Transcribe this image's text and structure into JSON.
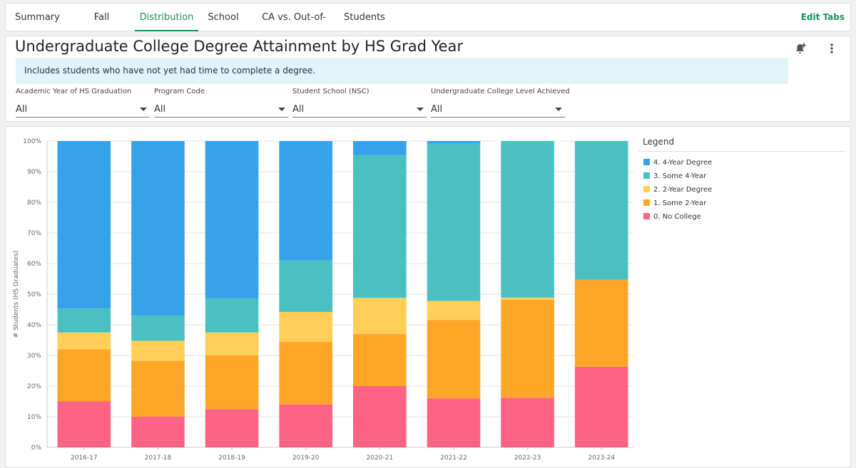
{
  "tabs": {
    "items": [
      {
        "label": "Summary"
      },
      {
        "label": "Fall Enrollment"
      },
      {
        "label": "Distribution"
      },
      {
        "label": "School"
      },
      {
        "label": "CA vs. Out-of-State"
      },
      {
        "label": "Students"
      }
    ],
    "active": "Distribution",
    "edit_label": "Edit Tabs"
  },
  "header": {
    "title": "Undergraduate College Degree Attainment by HS Grad Year",
    "info": "Includes students who have not yet had time to complete a degree."
  },
  "filters": [
    {
      "label": "Academic Year of HS Graduation",
      "value": "All"
    },
    {
      "label": "Program Code",
      "value": "All"
    },
    {
      "label": "Student School (NSC)",
      "value": "All"
    },
    {
      "label": "Undergraduate College Level Achieved",
      "value": "All"
    }
  ],
  "icons": {
    "bell": "bell-plus-icon",
    "more": "more-vertical-icon"
  },
  "chart_data": {
    "type": "bar",
    "stacked": true,
    "title": "Undergraduate College Degree Attainment by HS Grad Year",
    "xlabel": "",
    "ylabel": "# Students (HS Graduates)",
    "ylim": [
      0,
      100
    ],
    "yticks": [
      "0%",
      "10%",
      "20%",
      "30%",
      "40%",
      "50%",
      "60%",
      "70%",
      "80%",
      "90%",
      "100%"
    ],
    "categories": [
      "2016-17",
      "2017-18",
      "2018-19",
      "2019-20",
      "2020-21",
      "2021-22",
      "2022-23",
      "2023-24"
    ],
    "series": [
      {
        "name": "0. No College",
        "color": "#ff6384",
        "values": [
          15,
          10,
          12.5,
          14,
          20,
          16,
          16.2,
          26.3
        ]
      },
      {
        "name": "1. Some 2-Year",
        "color": "#ffa629",
        "values": [
          17,
          18.3,
          17.5,
          20.5,
          17,
          25.6,
          32,
          28.4
        ]
      },
      {
        "name": "2. 2-Year Degree",
        "color": "#ffce56",
        "values": [
          5.5,
          6.5,
          7.5,
          9.7,
          11.8,
          6.2,
          0.7,
          0
        ]
      },
      {
        "name": "3. Some 4-Year",
        "color": "#4bc0c0",
        "values": [
          7.8,
          8.2,
          11.2,
          16.8,
          46.6,
          51.5,
          51.1,
          45.3
        ]
      },
      {
        "name": "4. 4-Year Degree",
        "color": "#36a2eb",
        "values": [
          54.7,
          57,
          51.3,
          39,
          4.6,
          0.7,
          0,
          0
        ]
      }
    ],
    "legend_title": "Legend",
    "legend_order": [
      "4. 4-Year Degree",
      "3. Some 4-Year",
      "2. 2-Year Degree",
      "1. Some 2-Year",
      "0. No College"
    ],
    "legend_position": "right"
  }
}
